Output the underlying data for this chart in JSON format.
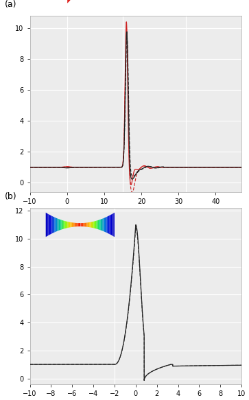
{
  "panel_a": {
    "xlim": [
      -10,
      47
    ],
    "ylim": [
      -0.6,
      10.8
    ],
    "yticks": [
      0,
      2,
      4,
      6,
      8,
      10
    ],
    "xticks": [
      -10,
      0,
      10,
      20,
      30,
      40
    ],
    "vlines": [
      0,
      15,
      32
    ],
    "label": "(a)"
  },
  "panel_b": {
    "xlim": [
      -10,
      10
    ],
    "ylim": [
      -0.4,
      12.2
    ],
    "yticks": [
      0,
      2,
      4,
      6,
      8,
      10,
      12
    ],
    "xticks": [
      -10,
      -8,
      -6,
      -4,
      -2,
      0,
      2,
      4,
      6,
      8,
      10
    ],
    "vlines": [
      -2
    ],
    "label": "(b)"
  },
  "bg_color": "#ececec",
  "line_black": "#222222",
  "line_red": "#cc2222",
  "vline_color": "#ffffff",
  "hline_color": "#ffffff"
}
